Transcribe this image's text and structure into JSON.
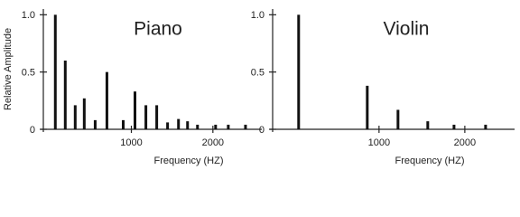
{
  "chart_data": [
    {
      "type": "bar",
      "title": "Piano",
      "xlabel": "Frequency (HZ)",
      "ylabel": "Relative Amplitude",
      "color": "#111111",
      "x": [
        67,
        189,
        311,
        422,
        556,
        700,
        900,
        1044,
        1178,
        1311,
        1444,
        1578,
        1689,
        1811,
        2033,
        2189,
        2400
      ],
      "values": [
        1.0,
        0.6,
        0.21,
        0.27,
        0.08,
        0.5,
        0.08,
        0.33,
        0.21,
        0.21,
        0.06,
        0.09,
        0.07,
        0.04,
        0.04,
        0.04,
        0.04
      ],
      "xlim": [
        -80,
        2600
      ],
      "ylim": [
        0,
        1.05
      ],
      "xticks": [
        1000,
        2000
      ],
      "yticks": [
        0,
        0.5,
        {
          "value": 1,
          "label": "1.0"
        }
      ]
    },
    {
      "type": "bar",
      "title": "Violin",
      "xlabel": "Frequency (HZ)",
      "color": "#111111",
      "x": [
        63,
        863,
        1221,
        1568,
        1874,
        2242
      ],
      "values": [
        1.0,
        0.38,
        0.17,
        0.07,
        0.04,
        0.04
      ],
      "xlim": [
        -240,
        2580
      ],
      "ylim": [
        0,
        1.05
      ],
      "xticks": [
        1000,
        2000
      ],
      "yticks": [
        0,
        0.5,
        {
          "value": 1,
          "label": "1.0"
        }
      ]
    }
  ]
}
